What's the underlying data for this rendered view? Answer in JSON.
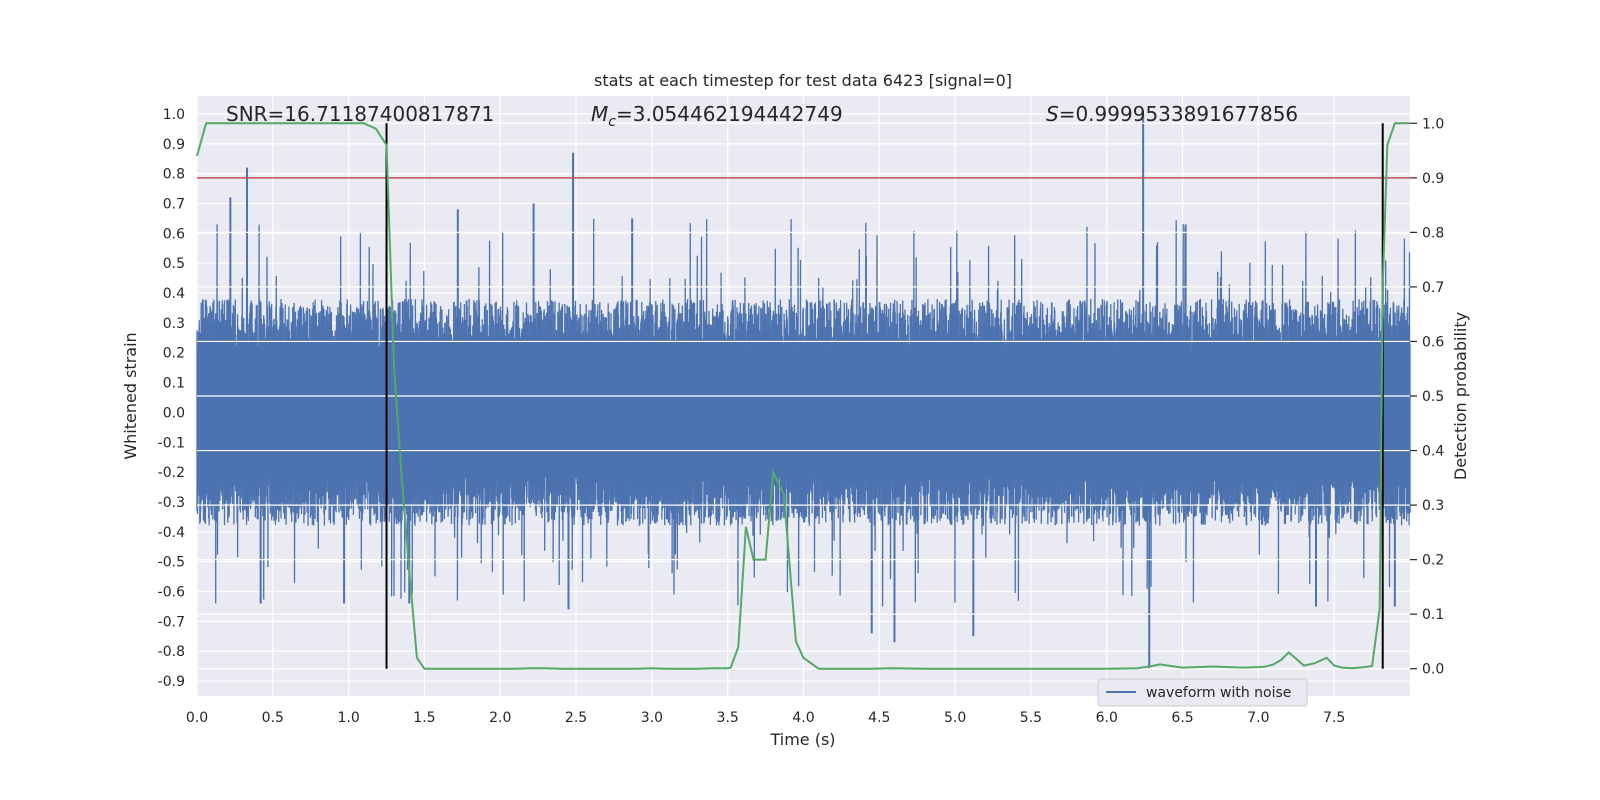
{
  "chart_data": {
    "type": "line",
    "title": "stats at each timestep for test data 6423 [signal=0]",
    "xlabel": "Time (s)",
    "ylabel_left": "Whitened strain",
    "ylabel_right": "Detection probability",
    "xlim": [
      0.0,
      8.0
    ],
    "ylim_left": [
      -0.95,
      1.06
    ],
    "ylim_right": [
      -0.05,
      1.05
    ],
    "xticks": [
      "0.0",
      "0.5",
      "1.0",
      "1.5",
      "2.0",
      "2.5",
      "3.0",
      "3.5",
      "4.0",
      "4.5",
      "5.0",
      "5.5",
      "6.0",
      "6.5",
      "7.0",
      "7.5"
    ],
    "xtick_values": [
      0.0,
      0.5,
      1.0,
      1.5,
      2.0,
      2.5,
      3.0,
      3.5,
      4.0,
      4.5,
      5.0,
      5.5,
      6.0,
      6.5,
      7.0,
      7.5
    ],
    "yticks_left": [
      "1.0",
      "0.9",
      "0.8",
      "0.7",
      "0.6",
      "0.5",
      "0.4",
      "0.3",
      "0.2",
      "0.1",
      "0.0",
      "-0.1",
      "-0.2",
      "-0.3",
      "-0.4",
      "-0.5",
      "-0.6",
      "-0.7",
      "-0.8",
      "-0.9"
    ],
    "ytick_left_values": [
      1.0,
      0.9,
      0.8,
      0.7,
      0.6,
      0.5,
      0.4,
      0.3,
      0.2,
      0.1,
      0.0,
      -0.1,
      -0.2,
      -0.3,
      -0.4,
      -0.5,
      -0.6,
      -0.7,
      -0.8,
      -0.9
    ],
    "yticks_right": [
      "1.0",
      "0.9",
      "0.8",
      "0.7",
      "0.6",
      "0.5",
      "0.4",
      "0.3",
      "0.2",
      "0.1",
      "0.0"
    ],
    "ytick_right_values": [
      1.0,
      0.9,
      0.8,
      0.7,
      0.6,
      0.5,
      0.4,
      0.3,
      0.2,
      0.1,
      0.0
    ],
    "annotations": {
      "snr": "SNR=16.71187400817871",
      "mc_symbol": "M",
      "mc_subscript": "c",
      "mc_value": "=3.054462194442749",
      "s_symbol": "S",
      "s_value": "=0.9999533891677856"
    },
    "legend": {
      "label": "waveform with noise",
      "location": "lower right"
    },
    "threshold_line": {
      "value": 0.9,
      "color": "#c44e52"
    },
    "vertical_markers": [
      1.25,
      7.82
    ],
    "series": [
      {
        "name": "waveform with noise",
        "axis": "left",
        "color": "#4c72b0",
        "envelope": {
          "typical_positive": 0.38,
          "typical_negative": -0.38,
          "max": 1.0,
          "min": -0.86
        },
        "spikes": [
          {
            "t": 0.33,
            "v": 0.82
          },
          {
            "t": 0.22,
            "v": 0.72
          },
          {
            "t": 2.48,
            "v": 0.87
          },
          {
            "t": 6.24,
            "v": 1.0
          },
          {
            "t": 6.28,
            "v": -0.86
          },
          {
            "t": 4.6,
            "v": -0.77
          },
          {
            "t": 5.12,
            "v": -0.75
          },
          {
            "t": 4.45,
            "v": -0.74
          },
          {
            "t": 1.4,
            "v": -0.64
          },
          {
            "t": 0.42,
            "v": -0.64
          },
          {
            "t": 2.45,
            "v": -0.66
          },
          {
            "t": 0.97,
            "v": -0.64
          },
          {
            "t": 1.72,
            "v": 0.68
          },
          {
            "t": 2.22,
            "v": 0.7
          },
          {
            "t": 6.52,
            "v": 0.63
          },
          {
            "t": 7.38,
            "v": -0.65
          },
          {
            "t": 7.9,
            "v": -0.65
          },
          {
            "t": 2.87,
            "v": 0.65
          }
        ]
      },
      {
        "name": "detection probability",
        "axis": "right",
        "color": "#55a868",
        "x": [
          0.0,
          0.06,
          0.1,
          0.2,
          0.3,
          0.4,
          0.5,
          0.6,
          0.7,
          0.8,
          0.9,
          1.0,
          1.05,
          1.1,
          1.18,
          1.25,
          1.3,
          1.35,
          1.4,
          1.45,
          1.5,
          1.6,
          1.7,
          1.8,
          1.9,
          2.0,
          2.1,
          2.2,
          2.3,
          2.4,
          2.5,
          2.6,
          2.7,
          2.8,
          2.9,
          3.0,
          3.1,
          3.2,
          3.3,
          3.4,
          3.5,
          3.52,
          3.57,
          3.62,
          3.67,
          3.75,
          3.8,
          3.87,
          3.95,
          4.0,
          4.1,
          4.15,
          4.3,
          4.45,
          4.6,
          4.8,
          5.0,
          5.2,
          5.4,
          5.6,
          5.8,
          6.0,
          6.2,
          6.3,
          6.35,
          6.4,
          6.5,
          6.6,
          6.7,
          6.8,
          6.9,
          7.0,
          7.05,
          7.1,
          7.15,
          7.2,
          7.3,
          7.37,
          7.45,
          7.5,
          7.55,
          7.62,
          7.7,
          7.75,
          7.8,
          7.82,
          7.85,
          7.9,
          8.0
        ],
        "y": [
          0.94,
          1.0,
          1.0,
          1.0,
          1.0,
          1.0,
          1.0,
          1.0,
          1.0,
          1.0,
          1.0,
          1.0,
          1.0,
          1.0,
          0.99,
          0.96,
          0.55,
          0.35,
          0.18,
          0.02,
          0.0,
          0.0,
          0.0,
          0.0,
          0.0,
          0.0,
          0.0,
          0.001,
          0.001,
          0.0,
          0.0,
          0.0,
          0.0,
          0.0,
          0.0,
          0.001,
          0.0,
          0.0,
          0.0,
          0.001,
          0.001,
          0.002,
          0.04,
          0.26,
          0.2,
          0.2,
          0.36,
          0.32,
          0.05,
          0.02,
          0.0,
          0.0,
          0.0,
          0.0,
          0.001,
          0.0,
          0.0,
          0.0,
          0.0,
          0.0,
          0.0,
          0.0,
          0.001,
          0.005,
          0.008,
          0.006,
          0.002,
          0.003,
          0.004,
          0.003,
          0.002,
          0.003,
          0.004,
          0.008,
          0.016,
          0.03,
          0.006,
          0.01,
          0.02,
          0.006,
          0.002,
          0.001,
          0.003,
          0.005,
          0.11,
          0.7,
          0.96,
          1.0,
          1.0
        ]
      }
    ]
  }
}
